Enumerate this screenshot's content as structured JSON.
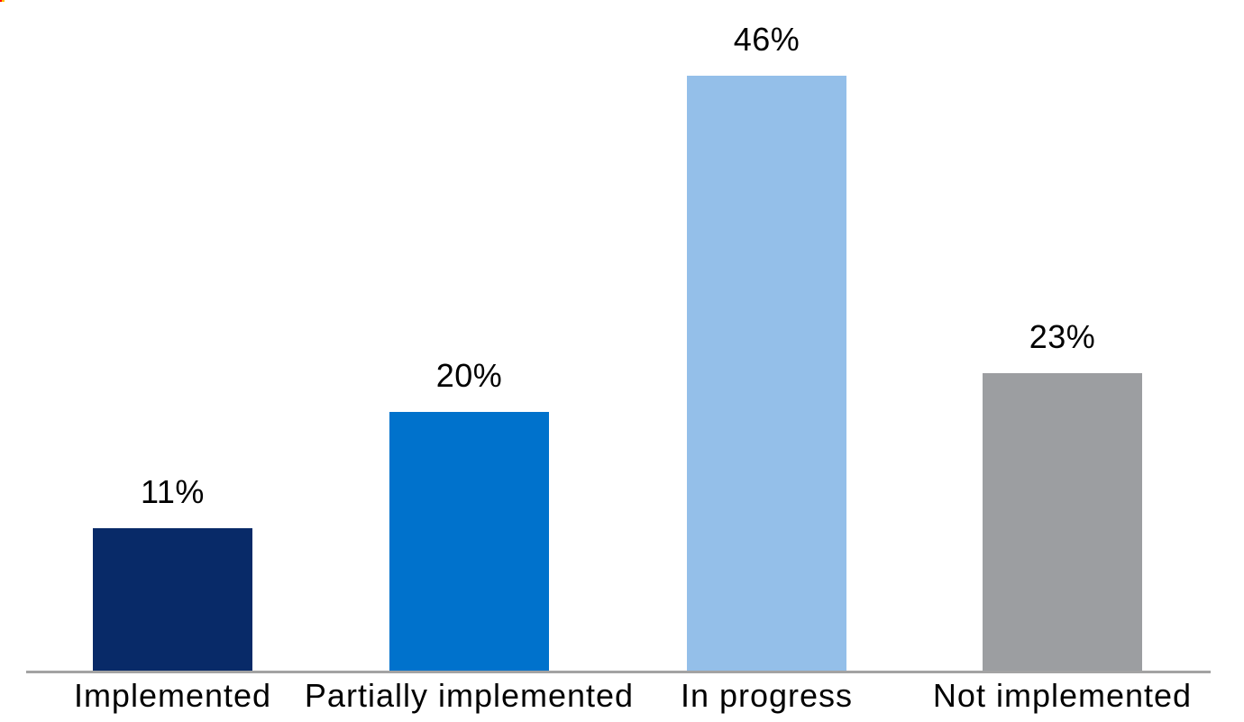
{
  "chart_data": {
    "type": "bar",
    "title": "",
    "xlabel": "",
    "ylabel": "",
    "categories": [
      "Implemented",
      "Partially implemented",
      "In progress",
      "Not implemented"
    ],
    "values": [
      11,
      20,
      46,
      23
    ],
    "value_labels": [
      "11%",
      "20%",
      "46%",
      "23%"
    ],
    "colors": [
      "#082a68",
      "#0072cc",
      "#94bfe9",
      "#9c9ea1"
    ],
    "ylim": [
      0,
      50
    ],
    "unit": "%",
    "grid": false,
    "legend": false,
    "axis_line_color": "#a3a3a3",
    "label_color": "#000000",
    "background_color": "#ffffff"
  },
  "artifacts": {
    "corner_mark_colors": [
      "#ff0000",
      "#ffc000"
    ]
  }
}
